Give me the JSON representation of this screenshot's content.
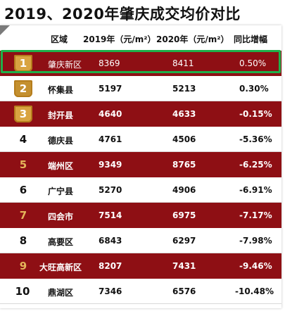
{
  "title": "2019、2020年肇庆成交均价对比",
  "header": {
    "region": "区域",
    "col_2019": "2019年（元/m²）",
    "col_2020": "2020年（元/m²）",
    "change": "同比增幅"
  },
  "rows": [
    {
      "rank": "1",
      "region": "肇庆新区",
      "v2019": "8369",
      "v2020": "8411",
      "change": "0.50%"
    },
    {
      "rank": "2",
      "region": "怀集县",
      "v2019": "5197",
      "v2020": "5213",
      "change": "0.30%"
    },
    {
      "rank": "3",
      "region": "封开县",
      "v2019": "4640",
      "v2020": "4633",
      "change": "-0.15%"
    },
    {
      "rank": "4",
      "region": "德庆县",
      "v2019": "4761",
      "v2020": "4506",
      "change": "-5.36%"
    },
    {
      "rank": "5",
      "region": "端州区",
      "v2019": "9349",
      "v2020": "8765",
      "change": "-6.25%"
    },
    {
      "rank": "6",
      "region": "广宁县",
      "v2019": "5270",
      "v2020": "4906",
      "change": "-6.91%"
    },
    {
      "rank": "7",
      "region": "四会市",
      "v2019": "7514",
      "v2020": "6975",
      "change": "-7.17%"
    },
    {
      "rank": "8",
      "region": "高要区",
      "v2019": "6843",
      "v2020": "6297",
      "change": "-7.98%"
    },
    {
      "rank": "9",
      "region": "大旺高新区",
      "v2019": "8207",
      "v2020": "7431",
      "change": "-9.46%"
    },
    {
      "rank": "10",
      "region": "鼎湖区",
      "v2019": "7346",
      "v2020": "6576",
      "change": "-10.48%"
    }
  ],
  "colors": {
    "dark_row": "#8e0f14",
    "gold_badge": "#d9a441",
    "highlight": "#1fb04a"
  }
}
